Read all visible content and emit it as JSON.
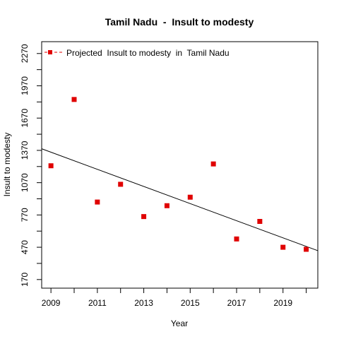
{
  "chart_data": {
    "type": "scatter",
    "title": "Tamil Nadu  -  Insult to modesty",
    "xlabel": "Year",
    "ylabel": "Insult to modesty",
    "xlim": [
      2008.6,
      2020.5
    ],
    "ylim": [
      90,
      2380
    ],
    "x_ticks": [
      2009,
      2010,
      2011,
      2012,
      2013,
      2014,
      2015,
      2016,
      2017,
      2018,
      2019,
      2020
    ],
    "x_tick_labels": [
      "2009",
      "",
      "2011",
      "",
      "2013",
      "",
      "2015",
      "",
      "2017",
      "",
      "2019",
      ""
    ],
    "y_ticks": [
      170,
      470,
      770,
      1070,
      1370,
      1670,
      1970,
      2270
    ],
    "y_minor_ticks": [
      320,
      620,
      920,
      1220,
      1520,
      1820,
      2120
    ],
    "y_tick_labels": [
      "170",
      "470",
      "770",
      "1070",
      "1370",
      "1670",
      "1970",
      "2270"
    ],
    "series": [
      {
        "name": "Projected  Insult to modesty  in  Tamil Nadu",
        "color": "#e00000",
        "marker": "square",
        "x": [
          2009,
          2010,
          2011,
          2012,
          2013,
          2014,
          2015,
          2016,
          2017,
          2018,
          2019,
          2020
        ],
        "y": [
          1227,
          1843,
          890,
          1055,
          755,
          856,
          935,
          1244,
          547,
          710,
          470,
          451
        ]
      }
    ],
    "trend_line": {
      "color": "#000000",
      "x": [
        2008.6,
        2020.5
      ],
      "y": [
        1385,
        438
      ]
    },
    "legend": {
      "position": "top-left",
      "line_style": "dashed"
    },
    "grid": false
  }
}
